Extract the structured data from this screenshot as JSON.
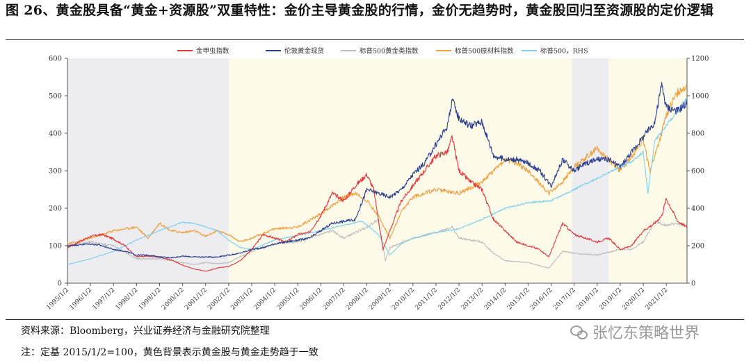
{
  "header": {
    "title": "图 26、黄金股具备“黄金+资源股”双重特性：金价主导黄金股的行情，金价无趋势时，黄金股回归至资源股的定价逻辑"
  },
  "footer": {
    "source": "资料来源：Bloomberg，兴业证券经济与金融研究院整理",
    "note": "注：定基 2015/1/2=100，黄色背景表示黄金股与黄金走势趋于一致",
    "watermark": "张忆东策略世界"
  },
  "chart_data": {
    "type": "line",
    "title": "",
    "xlabel": "",
    "ylabel": "",
    "ylim": [
      0,
      600
    ],
    "y2lim": [
      0,
      1200
    ],
    "yticks": [
      "0",
      "100",
      "200",
      "300",
      "400",
      "500",
      "600"
    ],
    "y2ticks": [
      "0",
      "200",
      "400",
      "600",
      "800",
      "1000",
      "1200"
    ],
    "x_ticks": [
      "1995/1/2",
      "1996/1/2",
      "1997/1/2",
      "1998/1/2",
      "1999/1/2",
      "2000/1/2",
      "2001/1/2",
      "2002/1/2",
      "2003/1/2",
      "2004/1/2",
      "2005/1/2",
      "2006/1/2",
      "2007/1/2",
      "2008/1/2",
      "2009/1/2",
      "2010/1/2",
      "2011/1/2",
      "2012/1/2",
      "2013/1/2",
      "2014/1/2",
      "2015/1/2",
      "2016/1/2",
      "2017/1/2",
      "2018/1/2",
      "2019/1/2",
      "2020/1/2",
      "2021/1/2"
    ],
    "x_range": [
      1995.0,
      2021.9
    ],
    "grid": false,
    "legend_position": "top",
    "background_bands": [
      {
        "from": 1995.0,
        "to": 2002.0,
        "color": "#ececf1"
      },
      {
        "from": 2002.0,
        "to": 2016.9,
        "color": "#fdfaea"
      },
      {
        "from": 2016.9,
        "to": 2018.5,
        "color": "#ececf1"
      },
      {
        "from": 2018.5,
        "to": 2021.9,
        "color": "#fdfaea"
      }
    ],
    "series": [
      {
        "name": "金甲虫指数",
        "color": "#e03a3a",
        "axis": "left",
        "x": [
          1995.0,
          1996.0,
          1996.5,
          1997.0,
          1997.5,
          1998.0,
          1998.5,
          1999.0,
          1999.5,
          2000.0,
          2000.5,
          2001.0,
          2001.5,
          2002.0,
          2002.5,
          2003.0,
          2003.5,
          2004.0,
          2004.5,
          2005.0,
          2005.5,
          2006.0,
          2006.5,
          2007.0,
          2007.5,
          2008.0,
          2008.3,
          2008.7,
          2009.0,
          2009.5,
          2010.0,
          2010.5,
          2011.0,
          2011.5,
          2011.7,
          2012.0,
          2012.5,
          2013.0,
          2013.5,
          2014.0,
          2014.5,
          2015.0,
          2015.5,
          2015.9,
          2016.5,
          2017.0,
          2017.5,
          2018.0,
          2018.5,
          2019.0,
          2019.5,
          2020.0,
          2020.5,
          2020.8,
          2021.0,
          2021.5,
          2021.9
        ],
        "y": [
          95,
          125,
          130,
          118,
          100,
          70,
          72,
          70,
          62,
          48,
          38,
          32,
          40,
          45,
          60,
          90,
          130,
          120,
          110,
          130,
          135,
          180,
          240,
          220,
          260,
          290,
          250,
          90,
          140,
          220,
          260,
          300,
          340,
          350,
          390,
          300,
          270,
          250,
          170,
          140,
          110,
          100,
          90,
          70,
          160,
          130,
          120,
          110,
          120,
          90,
          100,
          140,
          160,
          180,
          225,
          165,
          150
        ]
      },
      {
        "name": "伦敦黄金现货",
        "color": "#2a3f8f",
        "axis": "left",
        "x": [
          1995.0,
          1996.0,
          1996.5,
          1997.0,
          1997.5,
          1998.0,
          1998.5,
          1999.0,
          1999.5,
          2000.0,
          2000.5,
          2001.0,
          2001.5,
          2002.0,
          2002.5,
          2003.0,
          2003.5,
          2004.0,
          2004.5,
          2005.0,
          2005.5,
          2006.0,
          2006.5,
          2007.0,
          2007.5,
          2008.0,
          2008.5,
          2009.0,
          2009.5,
          2010.0,
          2010.5,
          2011.0,
          2011.5,
          2011.7,
          2012.0,
          2012.5,
          2013.0,
          2013.5,
          2014.0,
          2014.5,
          2015.0,
          2015.5,
          2016.0,
          2016.5,
          2017.0,
          2017.5,
          2018.0,
          2018.5,
          2019.0,
          2019.5,
          2020.0,
          2020.5,
          2020.8,
          2021.0,
          2021.5,
          2021.9
        ],
        "y": [
          100,
          105,
          100,
          90,
          85,
          75,
          75,
          70,
          68,
          72,
          70,
          70,
          70,
          75,
          80,
          90,
          95,
          105,
          110,
          115,
          120,
          140,
          160,
          165,
          170,
          250,
          240,
          230,
          250,
          290,
          320,
          370,
          420,
          490,
          440,
          420,
          430,
          340,
          330,
          330,
          320,
          300,
          260,
          330,
          300,
          320,
          330,
          330,
          310,
          350,
          390,
          430,
          530,
          470,
          460,
          480
        ]
      },
      {
        "name": "标普500黄金类指数",
        "color": "#bdbdbd",
        "axis": "left",
        "x": [
          1995.0,
          1996.0,
          1997.0,
          1998.0,
          1999.0,
          2000.0,
          2000.5,
          2001.0,
          2001.5,
          2002.0,
          2003.0,
          2004.0,
          2005.0,
          2006.0,
          2006.5,
          2007.0,
          2008.0,
          2008.5,
          2008.8,
          2009.0,
          2010.0,
          2011.0,
          2011.7,
          2012.0,
          2013.0,
          2013.5,
          2014.0,
          2015.0,
          2015.9,
          2016.5,
          2017.0,
          2018.0,
          2019.0,
          2019.5,
          2020.0,
          2020.5,
          2021.0,
          2021.5,
          2021.9
        ],
        "y": [
          100,
          110,
          100,
          65,
          65,
          55,
          50,
          55,
          52,
          55,
          85,
          105,
          110,
          130,
          140,
          120,
          150,
          170,
          60,
          95,
          120,
          135,
          150,
          120,
          110,
          80,
          60,
          55,
          40,
          85,
          80,
          75,
          90,
          90,
          110,
          165,
          155,
          160,
          150
        ]
      },
      {
        "name": "标普500原材料指数",
        "color": "#f0a040",
        "axis": "left",
        "x": [
          1995.0,
          1996.0,
          1997.0,
          1998.0,
          1998.5,
          1999.0,
          1999.5,
          2000.0,
          2000.5,
          2001.0,
          2001.5,
          2002.0,
          2002.5,
          2003.0,
          2004.0,
          2005.0,
          2006.0,
          2007.0,
          2007.5,
          2008.0,
          2008.5,
          2009.0,
          2009.5,
          2010.0,
          2011.0,
          2011.5,
          2012.0,
          2013.0,
          2014.0,
          2014.5,
          2015.0,
          2015.9,
          2016.5,
          2017.0,
          2018.0,
          2019.0,
          2019.5,
          2020.0,
          2020.3,
          2020.8,
          2021.0,
          2021.5,
          2021.9
        ],
        "y": [
          105,
          120,
          140,
          150,
          120,
          160,
          140,
          135,
          140,
          125,
          140,
          130,
          110,
          120,
          145,
          150,
          185,
          230,
          240,
          220,
          180,
          120,
          190,
          230,
          250,
          245,
          240,
          270,
          330,
          320,
          300,
          240,
          270,
          310,
          360,
          300,
          340,
          380,
          300,
          400,
          450,
          510,
          530
        ]
      },
      {
        "name": "标普500，RHS",
        "color": "#7fd0ee",
        "axis": "right",
        "x": [
          1995.0,
          1996.0,
          1997.0,
          1998.0,
          1999.0,
          2000.0,
          2000.5,
          2001.0,
          2001.5,
          2002.0,
          2002.5,
          2003.0,
          2004.0,
          2005.0,
          2006.0,
          2007.0,
          2007.8,
          2008.5,
          2009.0,
          2009.5,
          2010.0,
          2011.0,
          2012.0,
          2013.0,
          2014.0,
          2015.0,
          2016.0,
          2017.0,
          2018.0,
          2019.0,
          2019.5,
          2020.0,
          2020.2,
          2020.5,
          2021.0,
          2021.5,
          2021.9
        ],
        "y": [
          100,
          130,
          170,
          230,
          280,
          325,
          320,
          300,
          280,
          230,
          190,
          180,
          230,
          255,
          280,
          310,
          330,
          260,
          150,
          210,
          240,
          270,
          290,
          340,
          400,
          430,
          440,
          500,
          560,
          620,
          650,
          700,
          480,
          760,
          840,
          920,
          990
        ]
      }
    ]
  }
}
